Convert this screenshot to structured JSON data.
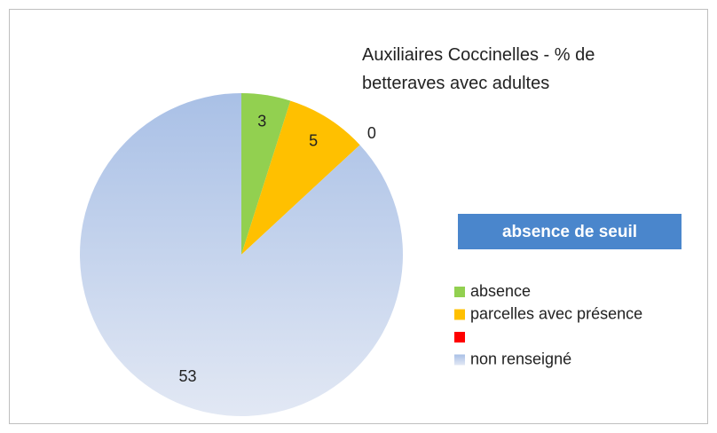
{
  "chart_data": {
    "type": "pie",
    "title": "Auxiliaires Coccinelles - % de betteraves avec adultes",
    "annotation": "absence de seuil",
    "categories": [
      "absence",
      "parcelles avec présence",
      null,
      "non renseigné"
    ],
    "values": [
      3,
      5,
      0,
      53
    ],
    "colors": [
      "#92d050",
      "#ffc000",
      "#ff0000",
      "#a9c0e6"
    ],
    "legend": "right"
  }
}
